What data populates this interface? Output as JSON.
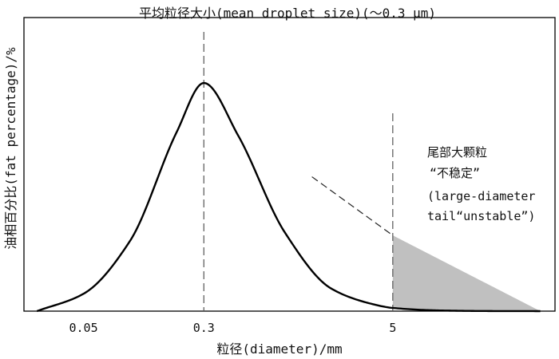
{
  "chart_data": {
    "type": "line",
    "title": "平均粒径大小(mean droplet size)(～0.3 μm)",
    "xlabel": "粒径(diameter)/mm",
    "ylabel": "油相百分比(fat percentage)/%",
    "x_scale": "log",
    "xlim": [
      0.0206,
      56
    ],
    "ylim": [
      0,
      100
    ],
    "ticks": [
      {
        "value": 0.05,
        "label": "0.05"
      },
      {
        "value": 0.3,
        "label": "0.3"
      },
      {
        "value": 5,
        "label": "5"
      }
    ],
    "series": [
      {
        "x": [
          0.025,
          0.05,
          0.1,
          0.2,
          0.3,
          0.5,
          1,
          2,
          3.5,
          5,
          10,
          20,
          45
        ],
        "y": [
          0,
          7.6,
          30.8,
          78.4,
          100,
          77,
          34.6,
          9.9,
          3.5,
          1.4,
          0.3,
          0.05,
          0
        ]
      }
    ],
    "tail": {
      "x": [
        1.5,
        5,
        45
      ],
      "y": [
        58.9,
        33.2,
        0
      ]
    },
    "reference_lines": [
      {
        "x": 0.3
      },
      {
        "x": 5
      }
    ],
    "annotation": {
      "lines": [
        "尾部大颗粒",
        "“不稳定”",
        "(large-diameter",
        "tail“unstable”)"
      ]
    },
    "colors": {
      "curve": "#000000",
      "shaded_tail": "#c0c0c0",
      "reference_line": "#555555"
    }
  }
}
